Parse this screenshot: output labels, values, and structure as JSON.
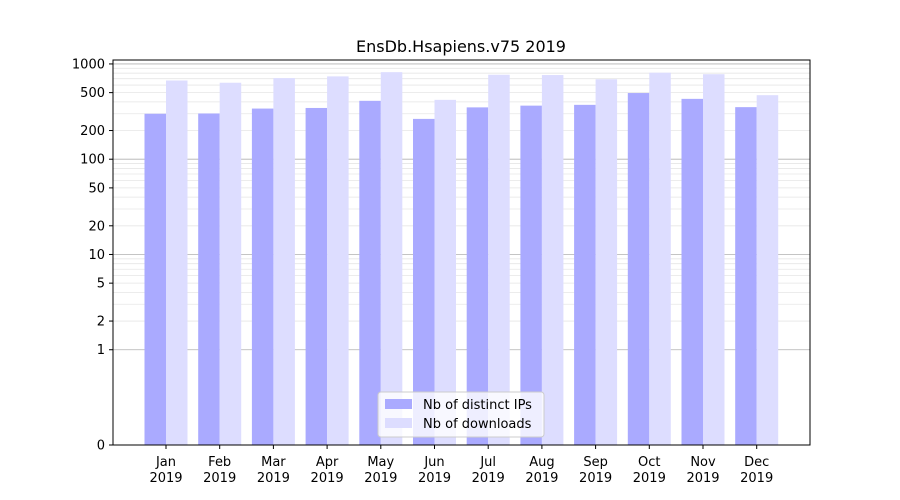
{
  "chart_data": {
    "type": "bar",
    "title": "EnsDb.Hsapiens.v75 2019",
    "xlabel": "",
    "ylabel": "",
    "yscale": "symlog",
    "ylim": [
      0,
      1100
    ],
    "yticks": [
      0,
      1,
      2,
      5,
      10,
      20,
      50,
      100,
      200,
      500,
      1000
    ],
    "grid": true,
    "legend_position": "bottom-center",
    "categories": [
      {
        "month": "Jan",
        "year": "2019"
      },
      {
        "month": "Feb",
        "year": "2019"
      },
      {
        "month": "Mar",
        "year": "2019"
      },
      {
        "month": "Apr",
        "year": "2019"
      },
      {
        "month": "May",
        "year": "2019"
      },
      {
        "month": "Jun",
        "year": "2019"
      },
      {
        "month": "Jul",
        "year": "2019"
      },
      {
        "month": "Aug",
        "year": "2019"
      },
      {
        "month": "Sep",
        "year": "2019"
      },
      {
        "month": "Oct",
        "year": "2019"
      },
      {
        "month": "Nov",
        "year": "2019"
      },
      {
        "month": "Dec",
        "year": "2019"
      }
    ],
    "series": [
      {
        "name": "Nb of distinct IPs",
        "color": "#aaaaff",
        "values": [
          300,
          302,
          340,
          345,
          410,
          265,
          350,
          365,
          372,
          495,
          430,
          352
        ]
      },
      {
        "name": "Nb of downloads",
        "color": "#ddddff",
        "values": [
          670,
          635,
          710,
          740,
          820,
          420,
          770,
          765,
          690,
          810,
          780,
          470
        ]
      }
    ]
  }
}
